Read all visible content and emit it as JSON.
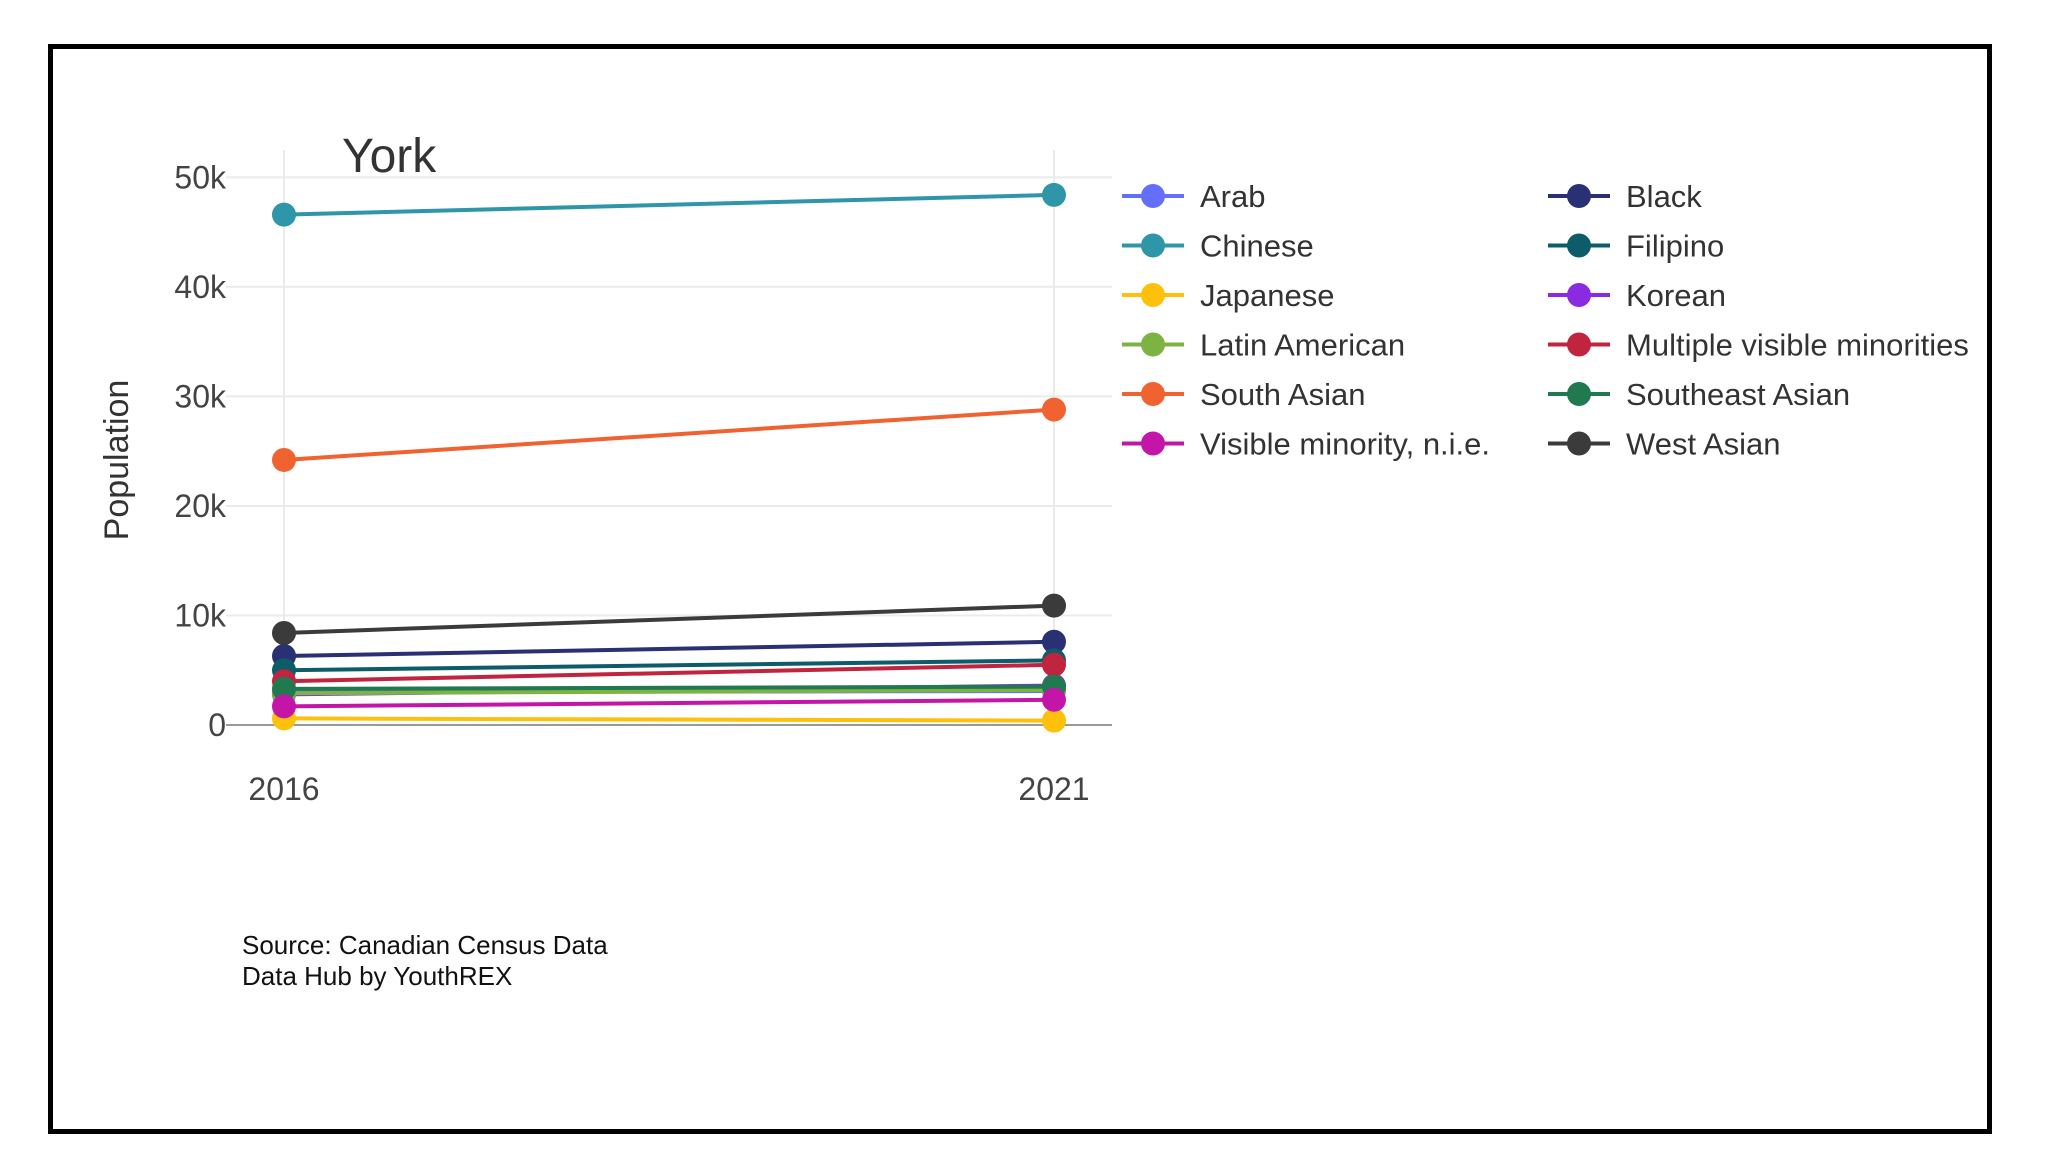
{
  "chart_data": {
    "type": "line",
    "title": "York",
    "ylabel": "Population",
    "xlabel": "",
    "x": [
      "2016",
      "2021"
    ],
    "ylim": [
      0,
      52500
    ],
    "yticks": [
      0,
      10000,
      20000,
      30000,
      40000,
      50000
    ],
    "ytick_labels": [
      "0",
      "10k",
      "20k",
      "30k",
      "40k",
      "50k"
    ],
    "grid": true,
    "legend_position": "right",
    "series": [
      {
        "name": "Arab",
        "color": "#636efa",
        "values": [
          3000,
          3100
        ]
      },
      {
        "name": "Black",
        "color": "#2a3074",
        "values": [
          6300,
          7600
        ]
      },
      {
        "name": "Chinese",
        "color": "#2e96a8",
        "values": [
          46600,
          48400
        ]
      },
      {
        "name": "Filipino",
        "color": "#0d5c6a",
        "values": [
          5000,
          5900
        ]
      },
      {
        "name": "Japanese",
        "color": "#fec10b",
        "values": [
          600,
          400
        ]
      },
      {
        "name": "Korean",
        "color": "#8a2be2",
        "values": [
          2800,
          3600
        ]
      },
      {
        "name": "Latin American",
        "color": "#7cb342",
        "values": [
          2900,
          3200
        ]
      },
      {
        "name": "Multiple visible minorities",
        "color": "#c0243e",
        "values": [
          4000,
          5500
        ]
      },
      {
        "name": "South Asian",
        "color": "#f0622f",
        "values": [
          24200,
          28800
        ]
      },
      {
        "name": "Southeast Asian",
        "color": "#217a4f",
        "values": [
          3300,
          3500
        ]
      },
      {
        "name": "Visible minority, n.i.e.",
        "color": "#c316a8",
        "values": [
          1700,
          2300
        ]
      },
      {
        "name": "West Asian",
        "color": "#3b3b3b",
        "values": [
          8400,
          10900
        ]
      }
    ]
  },
  "source": {
    "line1": "Source: Canadian Census Data",
    "line2": "Data Hub by YouthREX"
  }
}
